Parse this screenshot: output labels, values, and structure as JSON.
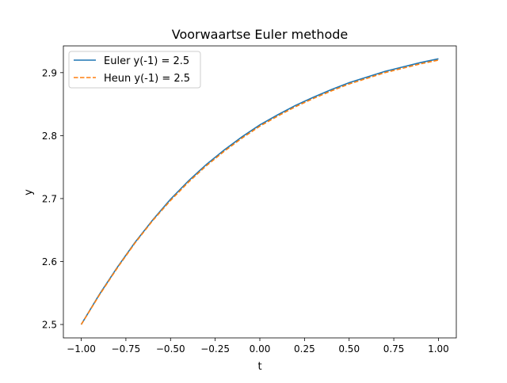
{
  "chart_data": {
    "type": "line",
    "title": "Voorwaartse Euler methode",
    "xlabel": "t",
    "ylabel": "y",
    "xlim": [
      -1.1,
      1.1
    ],
    "ylim": [
      2.4787,
      2.9425
    ],
    "xticks": [
      -1.0,
      -0.75,
      -0.5,
      -0.25,
      0.0,
      0.25,
      0.5,
      0.75,
      1.0
    ],
    "xtick_labels": [
      "−1.00",
      "−0.75",
      "−0.50",
      "−0.25",
      "0.00",
      "0.25",
      "0.50",
      "0.75",
      "1.00"
    ],
    "yticks": [
      2.5,
      2.6,
      2.7,
      2.8,
      2.9
    ],
    "ytick_labels": [
      "2.5",
      "2.6",
      "2.7",
      "2.8",
      "2.9"
    ],
    "grid": false,
    "legend_position": "upper-left",
    "series": [
      {
        "name": "Euler y(-1) = 2.5",
        "color": "#1f77b4",
        "style": "solid",
        "x": [
          -1.0,
          -0.9,
          -0.8,
          -0.7,
          -0.6,
          -0.5,
          -0.4,
          -0.3,
          -0.2,
          -0.1,
          0.0,
          0.1,
          0.2,
          0.3,
          0.4,
          0.5,
          0.6,
          0.7,
          0.8,
          0.9,
          1.0
        ],
        "y": [
          2.5,
          2.547,
          2.59,
          2.63,
          2.666,
          2.699,
          2.728,
          2.754,
          2.777,
          2.798,
          2.817,
          2.833,
          2.848,
          2.861,
          2.873,
          2.884,
          2.893,
          2.902,
          2.909,
          2.916,
          2.922
        ]
      },
      {
        "name": "Heun y(-1) = 2.5",
        "color": "#ff7f0e",
        "style": "dashed",
        "x": [
          -1.0,
          -0.9,
          -0.8,
          -0.7,
          -0.6,
          -0.5,
          -0.4,
          -0.3,
          -0.2,
          -0.1,
          0.0,
          0.1,
          0.2,
          0.3,
          0.4,
          0.5,
          0.6,
          0.7,
          0.8,
          0.9,
          1.0
        ],
        "y": [
          2.5,
          2.546,
          2.589,
          2.629,
          2.665,
          2.697,
          2.726,
          2.752,
          2.775,
          2.796,
          2.815,
          2.831,
          2.846,
          2.859,
          2.871,
          2.882,
          2.891,
          2.9,
          2.907,
          2.914,
          2.92
        ]
      }
    ]
  }
}
